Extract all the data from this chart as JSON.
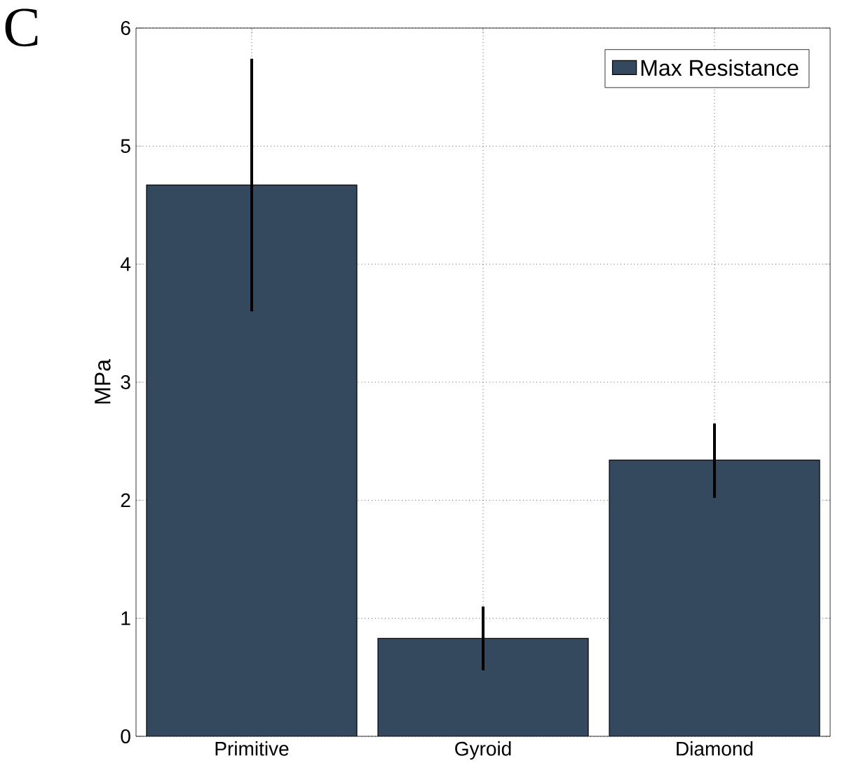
{
  "chart_data": {
    "type": "bar",
    "ylabel": "MPa",
    "categories": [
      "Primitive",
      "Gyroid",
      "Diamond"
    ],
    "series": [
      {
        "name": "Max Resistance",
        "color": "#34495e",
        "values": [
          4.67,
          0.83,
          2.34
        ],
        "errors": [
          [
            3.6,
            5.74
          ],
          [
            0.56,
            1.1
          ],
          [
            2.02,
            2.65
          ]
        ]
      }
    ],
    "ylim": [
      0,
      6
    ],
    "yticks": [
      0,
      1,
      2,
      3,
      4,
      5,
      6
    ],
    "grid": true,
    "legend": "top right",
    "annotations": [
      "C"
    ]
  }
}
